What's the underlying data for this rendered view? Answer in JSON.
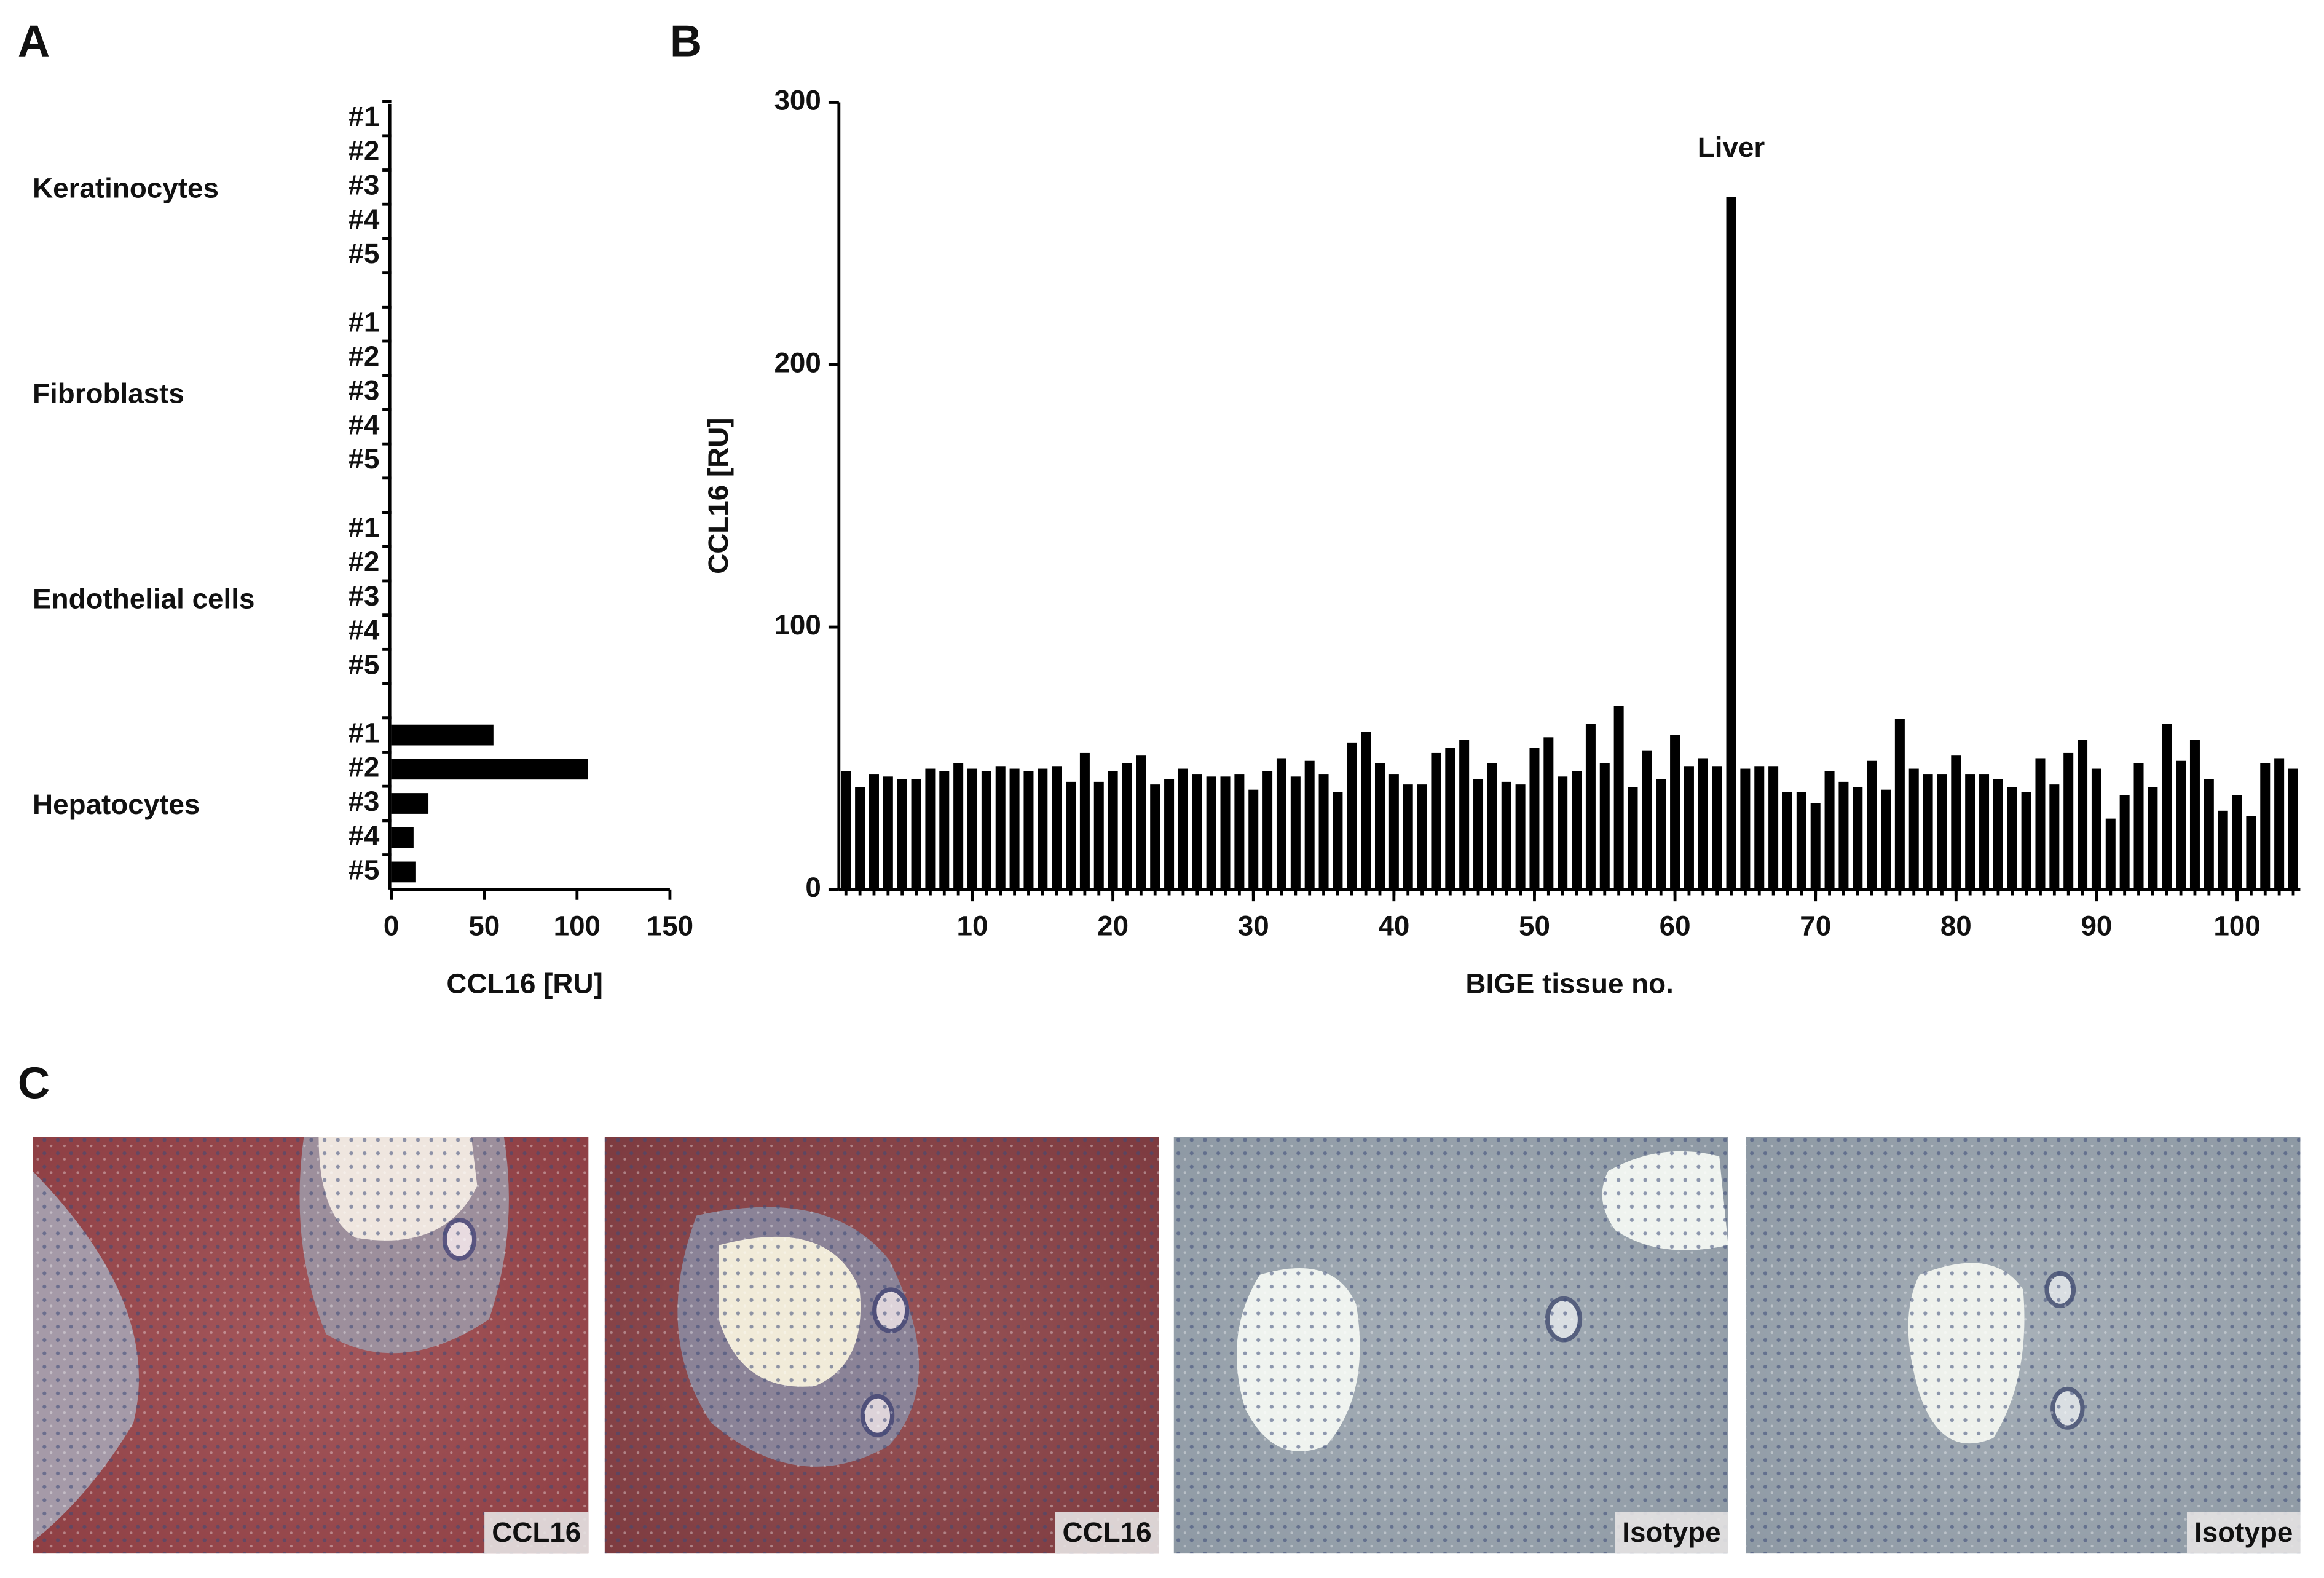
{
  "panel_labels": [
    "A",
    "B",
    "C"
  ],
  "chart_data": [
    {
      "type": "bar",
      "orientation": "horizontal",
      "categories": [
        "#1",
        "#2",
        "#3",
        "#4",
        "#5",
        "#1",
        "#2",
        "#3",
        "#4",
        "#5",
        "#1",
        "#2",
        "#3",
        "#4",
        "#5",
        "#1",
        "#2",
        "#3",
        "#4",
        "#5"
      ],
      "groups": [
        "Keratinocytes",
        "Fibroblasts",
        "Endothelial cells",
        "Hepatocytes"
      ],
      "values": [
        0,
        0,
        0,
        0,
        0,
        0,
        0,
        0,
        0,
        0,
        0,
        0,
        0,
        0,
        0,
        55,
        106,
        20,
        12,
        13
      ],
      "color": "#000000",
      "xlim": [
        0,
        150
      ],
      "xticks": [
        0,
        50,
        100,
        150
      ],
      "xlabel": "CCL16 [RU]"
    },
    {
      "type": "bar",
      "x": [
        1,
        2,
        3,
        4,
        5,
        6,
        7,
        8,
        9,
        10,
        11,
        12,
        13,
        14,
        15,
        16,
        17,
        18,
        19,
        20,
        21,
        22,
        23,
        24,
        25,
        26,
        27,
        28,
        29,
        30,
        31,
        32,
        33,
        34,
        35,
        36,
        37,
        38,
        39,
        40,
        41,
        42,
        43,
        44,
        45,
        46,
        47,
        48,
        49,
        50,
        51,
        52,
        53,
        54,
        55,
        56,
        57,
        58,
        59,
        60,
        61,
        62,
        63,
        64,
        65,
        66,
        67,
        68,
        69,
        70,
        71,
        72,
        73,
        74,
        75,
        76,
        77,
        78,
        79,
        80,
        81,
        82,
        83,
        84,
        85,
        86,
        87,
        88,
        89,
        90,
        91,
        92,
        93,
        94,
        95,
        96,
        97,
        98,
        99,
        100,
        101,
        102,
        103,
        104
      ],
      "values": [
        45,
        39,
        44,
        43,
        42,
        42,
        46,
        45,
        48,
        46,
        45,
        47,
        46,
        45,
        46,
        47,
        41,
        52,
        41,
        45,
        48,
        51,
        40,
        42,
        46,
        44,
        43,
        43,
        44,
        38,
        45,
        50,
        43,
        49,
        44,
        37,
        56,
        60,
        48,
        44,
        40,
        40,
        52,
        54,
        57,
        42,
        48,
        41,
        40,
        54,
        58,
        43,
        45,
        63,
        48,
        70,
        39,
        53,
        42,
        59,
        47,
        50,
        47,
        264,
        46,
        47,
        47,
        37,
        37,
        33,
        45,
        41,
        39,
        49,
        38,
        65,
        46,
        44,
        44,
        51,
        44,
        44,
        42,
        39,
        37,
        50,
        40,
        52,
        57,
        46,
        27,
        36,
        48,
        39,
        63,
        49,
        57,
        42,
        30,
        36,
        28,
        48,
        50,
        46
      ],
      "color": "#000000",
      "xlim": [
        0.5,
        104.5
      ],
      "xticks": [
        10,
        20,
        30,
        40,
        50,
        60,
        70,
        80,
        90,
        100
      ],
      "ylim": [
        0,
        300
      ],
      "yticks": [
        0,
        100,
        200,
        300
      ],
      "xlabel": "BIGE tissue no.",
      "ylabel": "CCL16 [RU]",
      "annotations": [
        {
          "text": "Liver",
          "x": 64
        }
      ]
    }
  ],
  "images": [
    {
      "label": "CCL16"
    },
    {
      "label": "CCL16"
    },
    {
      "label": "Isotype"
    },
    {
      "label": "Isotype"
    }
  ]
}
